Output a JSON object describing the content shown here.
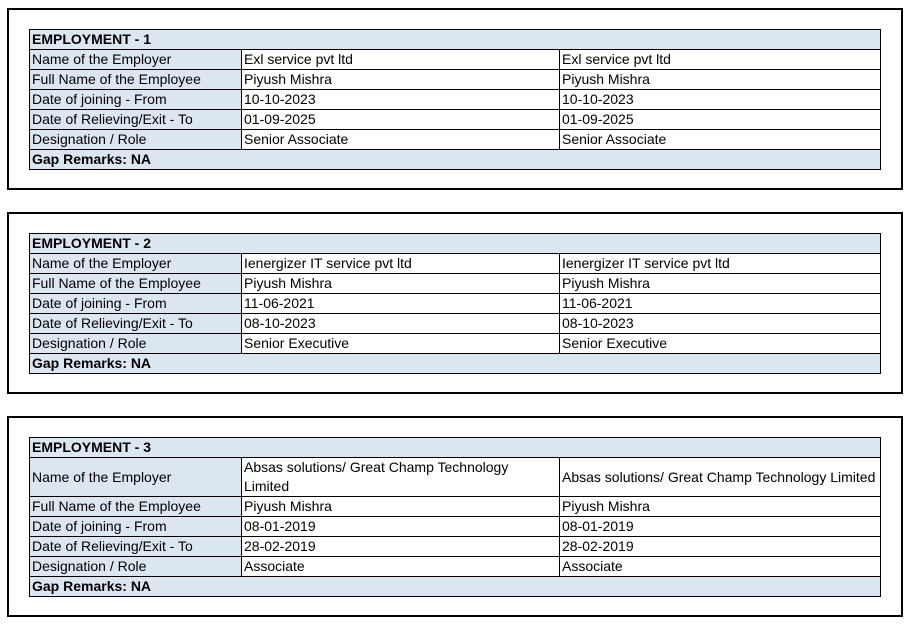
{
  "sections": [
    {
      "title": "EMPLOYMENT - 1",
      "rows": [
        {
          "label": "Name of the Employer",
          "values": [
            "Exl service pvt ltd",
            "Exl service pvt ltd"
          ]
        },
        {
          "label": "Full Name of the Employee",
          "values": [
            "Piyush Mishra",
            "Piyush Mishra"
          ]
        },
        {
          "label": "Date of joining - From",
          "values": [
            "10-10-2023",
            "10-10-2023"
          ]
        },
        {
          "label": "Date of Relieving/Exit - To",
          "values": [
            "01-09-2025",
            "01-09-2025"
          ]
        },
        {
          "label": "Designation / Role",
          "values": [
            "Senior Associate",
            "Senior Associate"
          ]
        }
      ],
      "remarks": "Gap Remarks: NA"
    },
    {
      "title": "EMPLOYMENT - 2",
      "rows": [
        {
          "label": "Name of the Employer",
          "values": [
            "Ienergizer IT service pvt ltd",
            "Ienergizer IT service pvt ltd"
          ]
        },
        {
          "label": "Full Name of the Employee",
          "values": [
            "Piyush Mishra",
            "Piyush Mishra"
          ]
        },
        {
          "label": "Date of joining - From",
          "values": [
            "11-06-2021",
            "11-06-2021"
          ]
        },
        {
          "label": "Date of Relieving/Exit - To",
          "values": [
            "08-10-2023",
            "08-10-2023"
          ]
        },
        {
          "label": "Designation / Role",
          "values": [
            "Senior Executive",
            "Senior Executive"
          ]
        }
      ],
      "remarks": "Gap Remarks: NA"
    },
    {
      "title": "EMPLOYMENT - 3",
      "rows": [
        {
          "label": "Name of the Employer",
          "values": [
            "Absas solutions/ Great Champ Technology Limited",
            "Absas solutions/ Great Champ Technology Limited"
          ]
        },
        {
          "label": "Full Name of the Employee",
          "values": [
            "Piyush Mishra",
            "Piyush Mishra"
          ]
        },
        {
          "label": "Date of joining - From",
          "values": [
            "08-01-2019",
            "08-01-2019"
          ]
        },
        {
          "label": "Date of Relieving/Exit - To",
          "values": [
            "28-02-2019",
            "28-02-2019"
          ]
        },
        {
          "label": "Designation / Role",
          "values": [
            "Associate",
            "Associate"
          ]
        }
      ],
      "remarks": "Gap Remarks: NA"
    }
  ]
}
